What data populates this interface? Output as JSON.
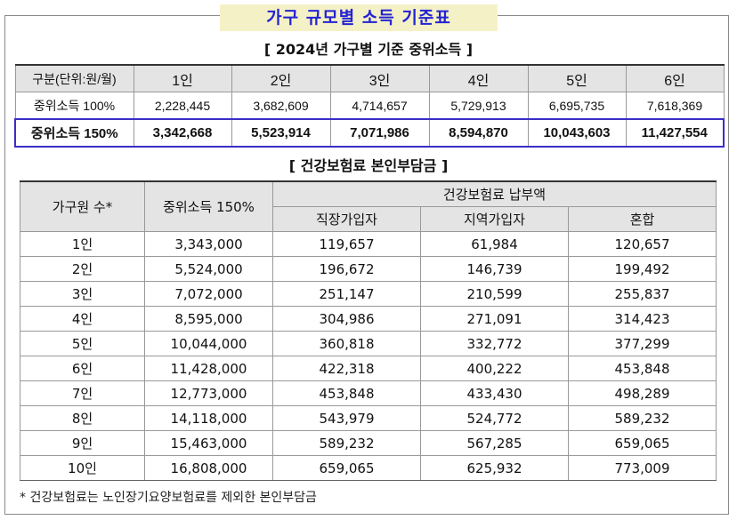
{
  "title": "가구 규모별 소득 기준표",
  "table1": {
    "title": "[ 2024년 가구별 기준 중위소득 ]",
    "header": [
      "구분(단위:원/월)",
      "1인",
      "2인",
      "3인",
      "4인",
      "5인",
      "6인"
    ],
    "rows": [
      [
        "중위소득 100%",
        "2,228,445",
        "3,682,609",
        "4,714,657",
        "5,729,913",
        "6,695,735",
        "7,618,369"
      ],
      [
        "중위소득 150%",
        "3,342,668",
        "5,523,914",
        "7,071,986",
        "8,594,870",
        "10,043,603",
        "11,427,554"
      ]
    ]
  },
  "table2": {
    "title": "[ 건강보험료 본인부담금 ]",
    "header_household": "가구원 수*",
    "header_income": "중위소득 150%",
    "header_premium": "건강보험료 납부액",
    "header_sub": [
      "직장가입자",
      "지역가입자",
      "혼합"
    ],
    "rows": [
      [
        "1인",
        "3,343,000",
        "119,657",
        "61,984",
        "120,657"
      ],
      [
        "2인",
        "5,524,000",
        "196,672",
        "146,739",
        "199,492"
      ],
      [
        "3인",
        "7,072,000",
        "251,147",
        "210,599",
        "255,837"
      ],
      [
        "4인",
        "8,595,000",
        "304,986",
        "271,091",
        "314,423"
      ],
      [
        "5인",
        "10,044,000",
        "360,818",
        "332,772",
        "377,299"
      ],
      [
        "6인",
        "11,428,000",
        "422,318",
        "400,222",
        "453,848"
      ],
      [
        "7인",
        "12,773,000",
        "453,848",
        "433,430",
        "498,289"
      ],
      [
        "8인",
        "14,118,000",
        "543,979",
        "524,772",
        "589,232"
      ],
      [
        "9인",
        "15,463,000",
        "589,232",
        "567,285",
        "659,065"
      ],
      [
        "10인",
        "16,808,000",
        "659,065",
        "625,932",
        "773,009"
      ]
    ]
  },
  "footnote": "* 건강보험료는 노인장기요양보험료를 제외한 본인부담금",
  "colors": {
    "title_text": "#2323d4",
    "title_bg": "#f5f1c6",
    "highlight_border": "#3b2cc8",
    "header_bg": "#e4e4e4"
  }
}
